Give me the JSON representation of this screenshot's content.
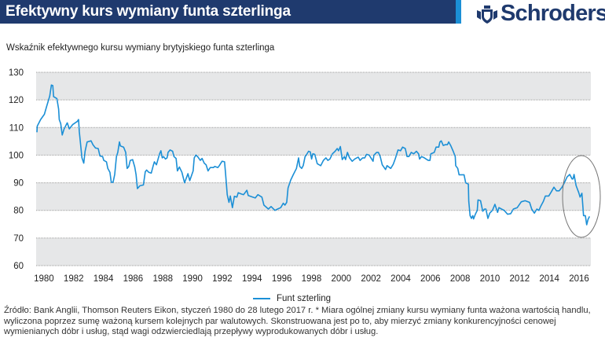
{
  "header": {
    "title": "Efektywny kurs wymiany funta szterlinga",
    "logo": "Schroders",
    "logo_icon": "crest-icon",
    "brand_color": "#1f3a6e",
    "accent_color": "#1b8fd6"
  },
  "subtitle": "Wskaźnik efektywnego kursu wymiany brytyjskiego funta szterlinga",
  "footnote": "Źródło: Bank Anglii, Thomson Reuters Eikon, styczeń 1980 do 28 lutego 2017 r. * Miara ogólnej zmiany kursu wymiany funta ważona wartością handlu, wyliczona poprzez sumę ważoną kursem kolejnych par walutowych. Skonstruowana jest po to, aby mierzyć zmiany konkurencyjności cenowej wymienianych dóbr i usług, stąd wagi odzwierciedlają przepływy wyprodukowanych dóbr i usług.",
  "chart_data": {
    "type": "line",
    "title": "",
    "xlabel": "",
    "ylabel": "",
    "xlim": [
      1980,
      2017.2
    ],
    "ylim": [
      60,
      130
    ],
    "yticks": [
      "130",
      "120",
      "110",
      "100",
      "90",
      "80",
      "70",
      "60"
    ],
    "xticks": [
      "1980",
      "1982",
      "1984",
      "1986",
      "1988",
      "1990",
      "1992",
      "1994",
      "1996",
      "1998",
      "2000",
      "2002",
      "2004",
      "2006",
      "2008",
      "2010",
      "2012",
      "2014",
      "2016"
    ],
    "grid": true,
    "band_color": "#e6e7e8",
    "legend_placement": "bottom",
    "annotation": "ellipse around 2015-2017",
    "series": [
      {
        "name": "Funt szterling",
        "color": "#1b8fd6",
        "x": [
          1980.0,
          1980.02,
          1980.25,
          1980.5,
          1980.65,
          1980.86,
          1980.97,
          1981.07,
          1981.12,
          1981.34,
          1981.46,
          1981.5,
          1981.6,
          1981.7,
          1981.83,
          1982.04,
          1982.18,
          1982.41,
          1982.71,
          1982.8,
          1982.85,
          1983.03,
          1983.15,
          1983.24,
          1983.38,
          1983.64,
          1983.77,
          1983.94,
          1984.12,
          1984.24,
          1984.42,
          1984.5,
          1984.68,
          1984.77,
          1984.91,
          1985.0,
          1985.12,
          1985.23,
          1985.35,
          1985.44,
          1985.55,
          1985.62,
          1985.83,
          1985.97,
          1986.07,
          1986.18,
          1986.28,
          1986.44,
          1986.58,
          1986.67,
          1986.76,
          1986.93,
          1987.16,
          1987.29,
          1987.38,
          1987.52,
          1987.69,
          1987.82,
          1987.9,
          1988.04,
          1988.25,
          1988.34,
          1988.43,
          1988.52,
          1988.64,
          1988.75,
          1988.82,
          1988.96,
          1989.13,
          1989.22,
          1989.36,
          1989.45,
          1989.58,
          1989.75,
          1989.93,
          1990.16,
          1990.28,
          1990.51,
          1990.58,
          1990.69,
          1990.81,
          1990.99,
          1991.11,
          1991.25,
          1991.38,
          1991.51,
          1991.66,
          1991.87,
          1991.96,
          1992.17,
          1992.27,
          1992.45,
          1992.62,
          1992.69,
          1992.8,
          1992.92,
          1993.01,
          1993.15,
          1993.28,
          1993.45,
          1993.54,
          1993.72,
          1993.9,
          1994.12,
          1994.21,
          1994.51,
          1994.69,
          1994.86,
          1995.13,
          1995.27,
          1995.57,
          1995.75,
          1996.01,
          1996.19,
          1996.4,
          1996.57,
          1996.68,
          1996.8,
          1996.89,
          1997.07,
          1997.24,
          1997.46,
          1997.6,
          1997.68,
          1997.81,
          1997.91,
          1998.04,
          1998.12,
          1998.27,
          1998.39,
          1998.48,
          1998.56,
          1998.69,
          1998.86,
          1999.09,
          1999.27,
          1999.44,
          1999.57,
          1999.71,
          1999.88,
          2000.06,
          2000.2,
          2000.29,
          2000.41,
          2000.54,
          2000.68,
          2000.76,
          2000.89,
          2001.03,
          2001.21,
          2001.38,
          2001.61,
          2001.74,
          2001.91,
          2002.05,
          2002.18,
          2002.35,
          2002.49,
          2002.61,
          2002.67,
          2002.85,
          2002.97,
          2003.09,
          2003.23,
          2003.45,
          2003.55,
          2003.8,
          2003.97,
          2004.11,
          2004.29,
          2004.46,
          2004.6,
          2004.78,
          2004.9,
          2005.02,
          2005.18,
          2005.35,
          2005.53,
          2005.67,
          2005.74,
          2005.88,
          2006.06,
          2006.32,
          2006.44,
          2006.5,
          2006.73,
          2006.85,
          2007.03,
          2007.11,
          2007.2,
          2007.33,
          2007.47,
          2007.61,
          2007.7,
          2007.85,
          2008.0,
          2008.14,
          2008.17,
          2008.31,
          2008.4,
          2008.73,
          2008.84,
          2009.02,
          2009.05,
          2009.14,
          2009.23,
          2009.32,
          2009.37,
          2009.49,
          2009.62,
          2009.67,
          2009.84,
          2009.99,
          2010.11,
          2010.2,
          2010.34,
          2010.46,
          2010.64,
          2010.81,
          2010.99,
          2011.08,
          2011.25,
          2011.43,
          2011.66,
          2011.87,
          2012.05,
          2012.31,
          2012.58,
          2012.84,
          2013.14,
          2013.28,
          2013.46,
          2013.63,
          2013.77,
          2013.9,
          2014.07,
          2014.2,
          2014.43,
          2014.6,
          2014.78,
          2014.95,
          2015.13,
          2015.31,
          2015.48,
          2015.66,
          2015.84,
          2016.0,
          2016.06,
          2016.13,
          2016.27,
          2016.45,
          2016.54,
          2016.66,
          2016.77,
          2016.89,
          2016.98,
          2017.07,
          2017.17
        ],
        "y": [
          108.3,
          110.5,
          112.9,
          114.8,
          117.6,
          121.4,
          125.4,
          125.2,
          121.2,
          120.5,
          116.7,
          112.9,
          111.4,
          107.3,
          109.5,
          111.7,
          109.5,
          111.1,
          112.2,
          112.9,
          108.6,
          99.0,
          97.1,
          101.4,
          104.8,
          105.2,
          103.8,
          102.6,
          102.4,
          99.7,
          99.5,
          98.1,
          97.6,
          95.2,
          93.8,
          90.2,
          90.2,
          93.0,
          99.5,
          101.0,
          104.8,
          103.3,
          102.9,
          101.0,
          95.2,
          95.9,
          98.1,
          98.4,
          95.7,
          92.9,
          87.9,
          88.9,
          89.2,
          94.0,
          94.6,
          93.8,
          93.5,
          96.2,
          97.6,
          96.5,
          100.5,
          101.6,
          99.0,
          99.5,
          98.6,
          99.0,
          101.0,
          101.9,
          101.4,
          99.5,
          98.8,
          94.3,
          95.7,
          93.8,
          90.0,
          93.3,
          90.8,
          94.3,
          99.0,
          100.0,
          99.5,
          98.1,
          98.8,
          97.1,
          96.5,
          94.3,
          95.5,
          95.5,
          95.9,
          95.5,
          96.2,
          97.8,
          97.6,
          93.3,
          85.7,
          82.9,
          85.2,
          81.0,
          85.1,
          84.8,
          86.4,
          86.0,
          85.7,
          87.3,
          85.4,
          84.8,
          84.5,
          85.7,
          84.8,
          81.9,
          80.5,
          81.4,
          80.0,
          80.5,
          81.0,
          82.6,
          81.9,
          82.9,
          88.1,
          91.0,
          92.9,
          95.2,
          99.0,
          95.9,
          95.2,
          96.2,
          99.5,
          100.0,
          101.4,
          101.2,
          98.6,
          100.5,
          100.3,
          96.9,
          96.2,
          98.1,
          99.0,
          98.1,
          98.6,
          100.5,
          101.4,
          102.4,
          101.6,
          103.1,
          98.4,
          99.5,
          98.4,
          101.0,
          99.0,
          97.8,
          98.6,
          99.3,
          98.1,
          99.0,
          99.0,
          100.3,
          100.0,
          98.8,
          97.8,
          100.0,
          101.0,
          101.0,
          99.5,
          96.5,
          94.8,
          96.2,
          95.2,
          96.7,
          98.8,
          101.9,
          101.6,
          102.9,
          102.4,
          99.5,
          99.5,
          101.0,
          100.5,
          101.4,
          100.5,
          98.6,
          99.5,
          99.0,
          98.1,
          98.1,
          100.5,
          101.0,
          102.9,
          102.9,
          104.8,
          105.2,
          103.5,
          103.8,
          103.8,
          104.8,
          103.3,
          101.4,
          99.5,
          96.2,
          95.2,
          92.9,
          92.9,
          90.0,
          89.5,
          83.3,
          78.1,
          77.1,
          78.1,
          76.9,
          78.6,
          80.0,
          83.8,
          83.5,
          79.7,
          80.5,
          80.5,
          77.1,
          79.0,
          80.0,
          82.2,
          79.3,
          81.0,
          80.5,
          80.0,
          78.6,
          78.8,
          80.5,
          81.0,
          83.1,
          83.5,
          82.9,
          80.5,
          79.0,
          80.5,
          80.0,
          81.6,
          83.3,
          85.2,
          85.2,
          86.7,
          88.4,
          87.1,
          87.1,
          88.3,
          90.0,
          92.1,
          93.0,
          91.4,
          91.4,
          93.0,
          89.0,
          86.4,
          84.8,
          86.2,
          78.1,
          78.1,
          74.8,
          76.7,
          77.8
        ]
      }
    ]
  }
}
